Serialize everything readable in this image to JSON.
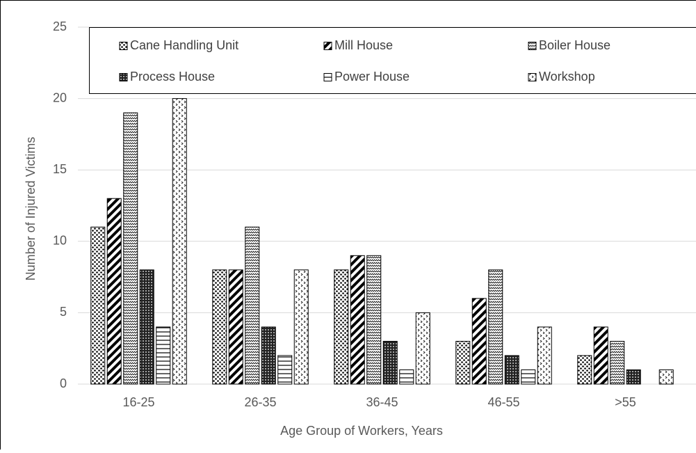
{
  "chart_data": {
    "type": "bar",
    "x_label": "Age Group of Workers, Years",
    "y_label": "Number of Injured Victims",
    "categories": [
      "16-25",
      "26-35",
      "36-45",
      "46-55",
      ">55"
    ],
    "series": [
      {
        "name": "Cane Handling Unit",
        "color": "#000000",
        "values": [
          11,
          8,
          8,
          3,
          2
        ]
      },
      {
        "name": "Mill House",
        "color": "#000000",
        "values": [
          13,
          8,
          9,
          6,
          4
        ]
      },
      {
        "name": "Boiler House",
        "color": "#000000",
        "values": [
          19,
          11,
          9,
          8,
          3
        ]
      },
      {
        "name": "Process House",
        "color": "#000000",
        "values": [
          8,
          4,
          3,
          2,
          1
        ]
      },
      {
        "name": "Power House",
        "color": "#000000",
        "values": [
          4,
          2,
          1,
          1,
          0
        ]
      },
      {
        "name": "Workshop",
        "color": "#000000",
        "values": [
          20,
          8,
          5,
          4,
          1
        ]
      }
    ],
    "ylim": [
      0,
      25
    ],
    "yticks": [
      0,
      5,
      10,
      15,
      20,
      25
    ],
    "grid": true
  }
}
